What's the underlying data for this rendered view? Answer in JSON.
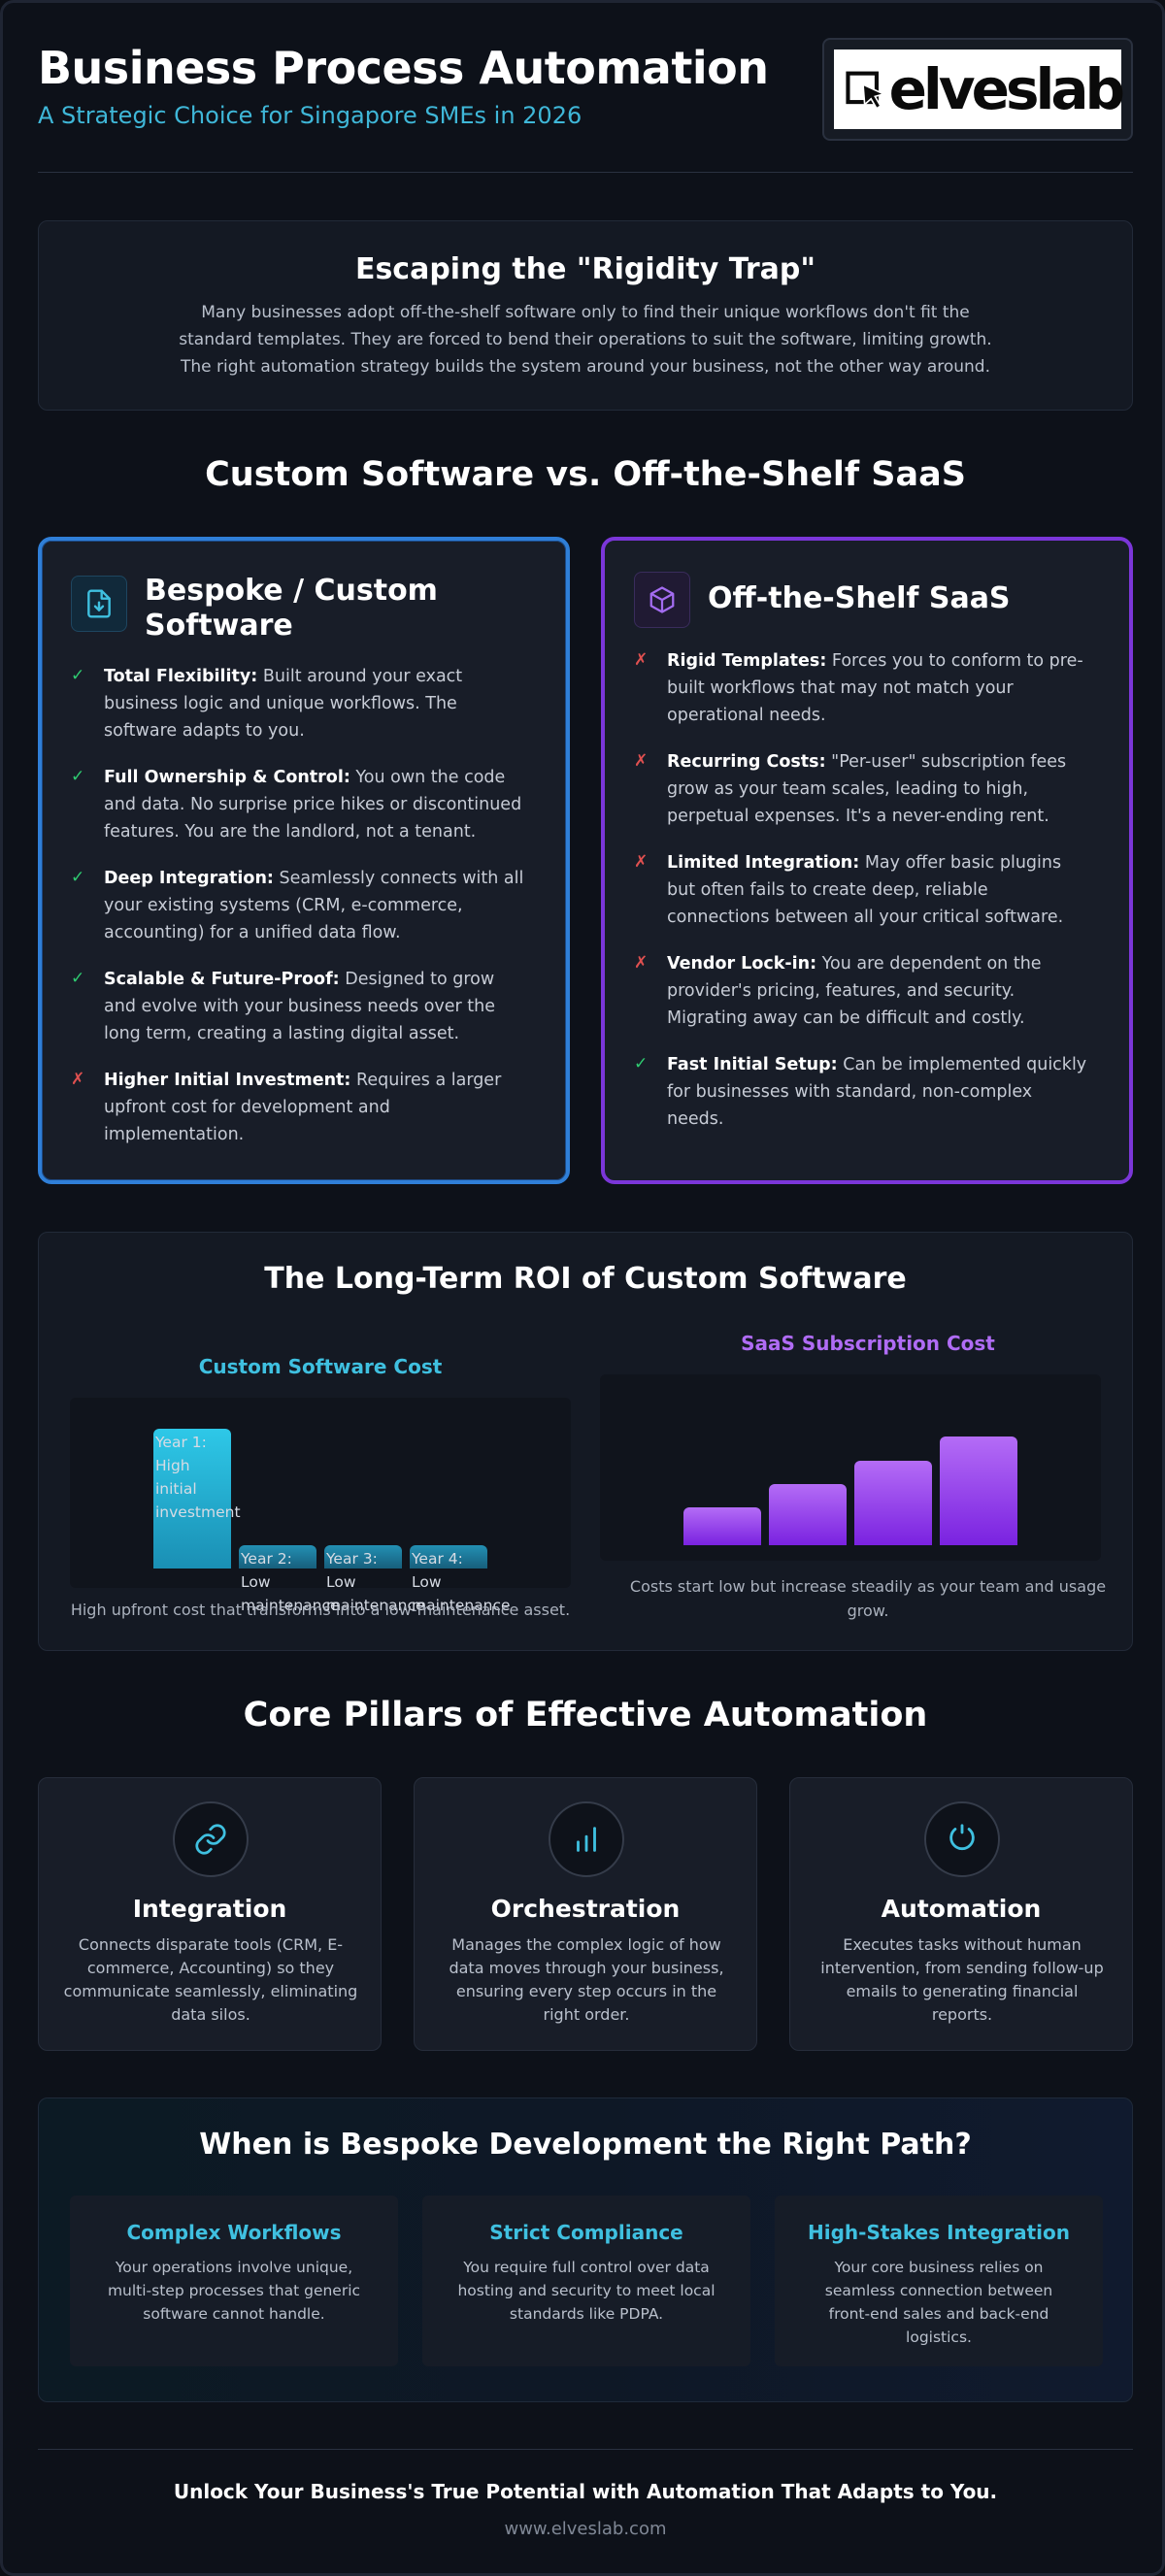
{
  "header": {
    "title": "Business Process Automation",
    "subtitle": "A Strategic Choice for Singapore SMEs in 2026",
    "logo_text": "elveslab"
  },
  "intro": {
    "heading": "Escaping the \"Rigidity Trap\"",
    "lines": [
      "Many businesses adopt off-the-shelf software only to find their unique workflows don't fit the",
      "standard templates. They are forced to bend their operations to suit the software, limiting growth.",
      "The right automation strategy builds the system around your business, not the other way around."
    ]
  },
  "comparison": {
    "heading": "Custom Software vs. Off-the-Shelf SaaS",
    "custom": {
      "title_line1": "Bespoke / Custom",
      "title_line2": "Software",
      "icon": "file-download-icon",
      "accent": "#2f7fd8",
      "items": [
        {
          "status": "pro",
          "mark": "✓",
          "label": "Total Flexibility:",
          "lines": [
            "Built around your exact",
            "business logic and unique workflows. The",
            "software adapts to you."
          ]
        },
        {
          "status": "pro",
          "mark": "✓",
          "label": "Full Ownership & Control:",
          "lines": [
            "You own the code",
            "and data. No surprise price hikes or discontinued",
            "features. You are the landlord, not a tenant."
          ]
        },
        {
          "status": "pro",
          "mark": "✓",
          "label": "Deep Integration:",
          "lines": [
            "Seamlessly connects with all",
            "your existing systems (CRM, e-commerce,",
            "accounting) for a unified data flow."
          ]
        },
        {
          "status": "pro",
          "mark": "✓",
          "label": "Scalable & Future-Proof:",
          "lines": [
            "Designed to grow",
            "and evolve with your business needs over the",
            "long term, creating a lasting digital asset."
          ]
        },
        {
          "status": "con",
          "mark": "✗",
          "label": "Higher Initial Investment:",
          "lines": [
            "Requires a larger",
            "upfront cost for development and",
            "implementation."
          ]
        }
      ]
    },
    "saas": {
      "title": "Off-the-Shelf SaaS",
      "icon": "cube-icon",
      "accent": "#7b36d9",
      "items": [
        {
          "status": "con",
          "mark": "✗",
          "label": "Rigid Templates:",
          "lines": [
            "Forces you to conform to pre-",
            "built workflows that may not match your",
            "operational needs."
          ]
        },
        {
          "status": "con",
          "mark": "✗",
          "label": "Recurring Costs:",
          "lines": [
            "\"Per-user\" subscription fees",
            "grow as your team scales, leading to high,",
            "perpetual expenses. It's a never-ending rent."
          ]
        },
        {
          "status": "con",
          "mark": "✗",
          "label": "Limited Integration:",
          "lines": [
            "May offer basic plugins",
            "but often fails to create deep, reliable",
            "connections between all your critical software."
          ]
        },
        {
          "status": "con",
          "mark": "✗",
          "label": "Vendor Lock-in:",
          "lines": [
            "You are dependent on the",
            "provider's pricing, features, and security.",
            "Migrating away can be difficult and costly."
          ]
        },
        {
          "status": "pro",
          "mark": "✓",
          "label": "Fast Initial Setup:",
          "lines": [
            "Can be implemented quickly",
            "for businesses with standard, non-complex",
            "needs."
          ]
        }
      ]
    }
  },
  "roi": {
    "heading": "The Long-Term ROI of Custom Software",
    "custom_chart": {
      "label": "Custom Software Cost",
      "bars": [
        {
          "label_lines": [
            "Year 1:",
            "High",
            "initial",
            "investment"
          ],
          "value": 1.0
        },
        {
          "label_lines": [
            "Year 2:",
            "Low",
            "maintenance"
          ],
          "value": 0.17
        },
        {
          "label_lines": [
            "Year 3:",
            "Low",
            "maintenance"
          ],
          "value": 0.17
        },
        {
          "label_lines": [
            "Year 4:",
            "Low",
            "maintenance"
          ],
          "value": 0.17
        }
      ],
      "caption": "High upfront cost that transforms into a low-maintenance asset."
    },
    "saas_chart": {
      "label": "SaaS Subscription Cost",
      "bars": [
        {
          "value": 0.35
        },
        {
          "value": 0.56
        },
        {
          "value": 0.78
        },
        {
          "value": 1.0
        }
      ],
      "caption_lines": [
        "Costs start low but increase steadily as your team and usage",
        "grow."
      ]
    }
  },
  "pillars": {
    "heading": "Core Pillars of Effective Automation",
    "items": [
      {
        "icon": "link-icon",
        "title": "Integration",
        "lines": [
          "Connects disparate tools (CRM, E-",
          "commerce, Accounting) so they",
          "communicate seamlessly, eliminating",
          "data silos."
        ]
      },
      {
        "icon": "bar-chart-icon",
        "title": "Orchestration",
        "lines": [
          "Manages the complex logic of how",
          "data moves through your business,",
          "ensuring every step occurs in the",
          "right order."
        ]
      },
      {
        "icon": "refresh-icon",
        "title": "Automation",
        "lines": [
          "Executes tasks without human",
          "intervention, from sending follow-up",
          "emails to generating financial",
          "reports."
        ]
      }
    ]
  },
  "when": {
    "heading": "When is Bespoke Development the Right Path?",
    "cards": [
      {
        "title": "Complex Workflows",
        "lines": [
          "Your operations involve unique,",
          "multi-step processes that generic",
          "software cannot handle."
        ]
      },
      {
        "title": "Strict Compliance",
        "lines": [
          "You require full control over data",
          "hosting and security to meet local",
          "standards like PDPA."
        ]
      },
      {
        "title": "High-Stakes Integration",
        "lines": [
          "Your core business relies on",
          "seamless connection between",
          "front-end sales and back-end",
          "logistics."
        ]
      }
    ]
  },
  "footer": {
    "tagline": "Unlock Your Business's True Potential with Automation That Adapts to You.",
    "url": "www.elveslab.com"
  },
  "colors": {
    "background": "#0d1119",
    "accent_cyan": "#3fb7d8",
    "accent_blue": "#2f7fd8",
    "accent_purple": "#7b36d9",
    "pro_green": "#2ecc71",
    "con_red": "#e05050"
  }
}
